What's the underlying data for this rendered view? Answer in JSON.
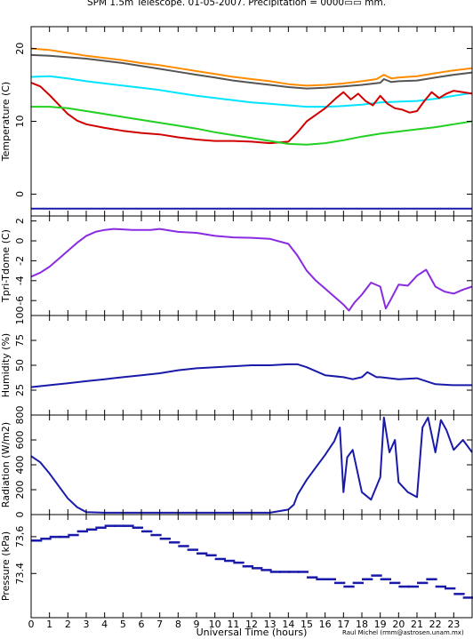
{
  "title": "SPM 1.5m Telescope. 01-05-2007. Precipitation = 0000▭▭ mm.",
  "xlabel": "Universal Time (hours)",
  "credit": "Raul Michel (rmm@astrosen.unam.mx)",
  "xticks": [
    "0",
    "1",
    "2",
    "3",
    "4",
    "5",
    "6",
    "7",
    "8",
    "9",
    "10",
    "11",
    "12",
    "13",
    "14",
    "15",
    "16",
    "17",
    "18",
    "19",
    "20",
    "21",
    "22",
    "23"
  ],
  "chart_data": [
    {
      "type": "line",
      "ylabel": "Temperature (C)",
      "ylim": [
        -3,
        23
      ],
      "yticks": [
        0,
        10,
        20
      ],
      "xlim": [
        0,
        24
      ],
      "series": [
        {
          "color": "#ff8c00",
          "x": [
            0,
            1,
            2,
            3,
            4,
            5,
            6,
            7,
            8,
            9,
            10,
            11,
            12,
            13,
            14,
            15,
            16,
            17,
            18,
            18.8,
            19.2,
            19.6,
            20,
            21,
            22,
            23,
            24
          ],
          "y": [
            20,
            19.8,
            19.4,
            19.0,
            18.7,
            18.4,
            18.0,
            17.7,
            17.3,
            16.9,
            16.5,
            16.1,
            15.8,
            15.5,
            15.1,
            14.9,
            15.0,
            15.2,
            15.5,
            15.8,
            16.4,
            15.9,
            16.0,
            16.2,
            16.6,
            17.0,
            17.3
          ]
        },
        {
          "color": "#555555",
          "x": [
            0,
            1,
            2,
            3,
            4,
            5,
            6,
            7,
            8,
            9,
            10,
            11,
            12,
            13,
            14,
            15,
            16,
            17,
            18,
            19,
            19.2,
            19.6,
            20,
            21,
            22,
            23,
            24
          ],
          "y": [
            19.1,
            19.0,
            18.8,
            18.6,
            18.3,
            18.0,
            17.6,
            17.2,
            16.8,
            16.4,
            16.0,
            15.6,
            15.3,
            15.0,
            14.7,
            14.5,
            14.6,
            14.8,
            15.0,
            15.3,
            15.8,
            15.4,
            15.5,
            15.6,
            16.0,
            16.4,
            16.7
          ]
        },
        {
          "color": "#00e5ff",
          "x": [
            0,
            1,
            2,
            3,
            4,
            5,
            6,
            7,
            8,
            9,
            10,
            11,
            12,
            13,
            14,
            15,
            16,
            17,
            18,
            19,
            20,
            21,
            22,
            23,
            24
          ],
          "y": [
            16.1,
            16.2,
            15.9,
            15.5,
            15.2,
            14.9,
            14.6,
            14.3,
            13.9,
            13.5,
            13.2,
            12.9,
            12.6,
            12.4,
            12.2,
            12.0,
            12.0,
            12.1,
            12.3,
            12.6,
            12.7,
            12.8,
            13.1,
            13.5,
            13.9
          ]
        },
        {
          "color": "#d00000",
          "x": [
            0,
            0.5,
            1,
            1.5,
            2,
            2.5,
            3,
            4,
            5,
            6,
            7,
            8,
            9,
            10,
            11,
            12,
            13,
            14,
            14.5,
            15,
            16,
            16.6,
            17,
            17.4,
            17.8,
            18.2,
            18.6,
            19,
            19.4,
            19.8,
            20.2,
            20.6,
            21,
            21.4,
            21.8,
            22.2,
            22.6,
            23,
            23.5,
            24
          ],
          "y": [
            15.3,
            14.8,
            13.6,
            12.3,
            11.0,
            10.1,
            9.6,
            9.1,
            8.7,
            8.4,
            8.2,
            7.8,
            7.5,
            7.3,
            7.3,
            7.2,
            7.0,
            7.2,
            8.5,
            10.0,
            11.8,
            13.2,
            14.0,
            13.0,
            13.8,
            12.8,
            12.2,
            13.5,
            12.4,
            11.8,
            11.6,
            11.2,
            11.4,
            12.8,
            14.0,
            13.2,
            13.8,
            14.2,
            14.0,
            13.8
          ]
        },
        {
          "color": "#22d022",
          "x": [
            0,
            1,
            2,
            3,
            4,
            5,
            6,
            7,
            8,
            9,
            10,
            11,
            12,
            13,
            14,
            15,
            16,
            17,
            18,
            19,
            20,
            21,
            22,
            23,
            24
          ],
          "y": [
            12.0,
            12.0,
            11.8,
            11.4,
            11.0,
            10.6,
            10.2,
            9.8,
            9.4,
            9.0,
            8.5,
            8.1,
            7.7,
            7.3,
            6.9,
            6.8,
            7.0,
            7.4,
            7.9,
            8.3,
            8.6,
            8.9,
            9.2,
            9.6,
            10.0
          ]
        },
        {
          "color": "#1a1aaa",
          "x": [
            0,
            24
          ],
          "y": [
            -2,
            -2
          ]
        }
      ]
    },
    {
      "type": "line",
      "ylabel": "Tpri-Tdome (C)",
      "ylim": [
        -7.5,
        2.5
      ],
      "yticks": [
        2,
        0,
        -2,
        -4,
        -6
      ],
      "xlim": [
        0,
        24
      ],
      "series": [
        {
          "color": "#8a2be2",
          "x": [
            0,
            0.5,
            1,
            1.5,
            2,
            2.5,
            3,
            3.5,
            4,
            4.5,
            5,
            5.5,
            6,
            6.5,
            7,
            7.5,
            8,
            9,
            10,
            11,
            12,
            13,
            14,
            14.5,
            15,
            15.5,
            16,
            16.5,
            17,
            17.3,
            17.6,
            18,
            18.5,
            19,
            19.3,
            19.6,
            20,
            20.5,
            21,
            21.5,
            22,
            22.5,
            23,
            23.5,
            24
          ],
          "y": [
            -3.6,
            -3.2,
            -2.6,
            -1.8,
            -1.0,
            -0.2,
            0.5,
            0.9,
            1.1,
            1.2,
            1.15,
            1.1,
            1.1,
            1.1,
            1.2,
            1.05,
            0.9,
            0.8,
            0.5,
            0.35,
            0.3,
            0.2,
            -0.3,
            -1.5,
            -3.0,
            -4.0,
            -4.8,
            -5.6,
            -6.4,
            -7.0,
            -6.2,
            -5.4,
            -4.2,
            -4.6,
            -6.8,
            -5.8,
            -4.4,
            -4.5,
            -3.5,
            -2.9,
            -4.6,
            -5.1,
            -5.3,
            -4.9,
            -4.6
          ]
        }
      ]
    },
    {
      "type": "line",
      "ylabel": "Humidity (%)",
      "ylim": [
        0,
        100
      ],
      "yticks": [
        25,
        50,
        75,
        100
      ],
      "xlim": [
        0,
        24
      ],
      "series": [
        {
          "color": "#1a1aaa",
          "x": [
            0,
            1,
            2,
            3,
            4,
            5,
            6,
            7,
            8,
            9,
            10,
            11,
            12,
            13,
            14,
            14.5,
            15,
            15.5,
            16,
            17,
            17.5,
            18,
            18.3,
            18.8,
            19,
            20,
            21,
            22,
            23,
            24
          ],
          "y": [
            28,
            30,
            32,
            34,
            36,
            38,
            40,
            42,
            45,
            47,
            48,
            49,
            50,
            50,
            51,
            51,
            48,
            44,
            40,
            38,
            36,
            38,
            43,
            38,
            38,
            36,
            37,
            31,
            30,
            30
          ]
        }
      ]
    },
    {
      "type": "line",
      "ylabel": "Radiation (W/m2)",
      "ylim": [
        0,
        800
      ],
      "yticks": [
        0,
        200,
        400,
        600,
        800
      ],
      "xlim": [
        0,
        24
      ],
      "series": [
        {
          "color": "#1a1aaa",
          "x": [
            0,
            0.5,
            1,
            1.5,
            2,
            2.5,
            3,
            4,
            5,
            6,
            7,
            8,
            9,
            10,
            11,
            12,
            13,
            14,
            14.3,
            14.5,
            15,
            15.5,
            16,
            16.5,
            16.8,
            17,
            17.2,
            17.5,
            18,
            18.5,
            19,
            19.2,
            19.5,
            19.8,
            20,
            20.5,
            21,
            21.3,
            21.6,
            22,
            22.3,
            22.6,
            23,
            23.5,
            24
          ],
          "y": [
            470,
            420,
            330,
            230,
            130,
            60,
            20,
            15,
            15,
            15,
            15,
            15,
            15,
            15,
            15,
            15,
            15,
            40,
            80,
            160,
            280,
            380,
            480,
            590,
            700,
            180,
            460,
            520,
            180,
            120,
            300,
            780,
            500,
            600,
            260,
            180,
            140,
            700,
            780,
            500,
            760,
            680,
            520,
            600,
            500
          ]
        }
      ]
    },
    {
      "type": "scatter",
      "ylabel": "Pressure (kPa)",
      "ylim": [
        73.16,
        73.72
      ],
      "yticks": [
        73.4,
        73.6
      ],
      "ytick_labels": [
        "73.4",
        "73,6"
      ],
      "xlim": [
        0,
        24
      ],
      "series": [
        {
          "color": "#1a1aaa",
          "x": [
            0,
            0.5,
            1,
            1.5,
            2,
            2.5,
            3,
            3.5,
            4,
            4.5,
            5,
            5.5,
            6,
            6.5,
            7,
            7.5,
            8,
            8.5,
            9,
            9.5,
            10,
            10.5,
            11,
            11.5,
            12,
            12.5,
            13,
            13.5,
            14,
            14.5,
            15,
            15.5,
            16,
            16.5,
            17,
            17.5,
            18,
            18.5,
            19,
            19.5,
            20,
            20.5,
            21,
            21.5,
            22,
            22.5,
            23,
            23.5,
            24
          ],
          "y": [
            73.58,
            73.59,
            73.6,
            73.6,
            73.61,
            73.63,
            73.64,
            73.65,
            73.66,
            73.66,
            73.66,
            73.65,
            73.63,
            73.61,
            73.59,
            73.57,
            73.55,
            73.53,
            73.51,
            73.5,
            73.48,
            73.47,
            73.46,
            73.44,
            73.43,
            73.42,
            73.41,
            73.41,
            73.41,
            73.41,
            73.38,
            73.37,
            73.37,
            73.35,
            73.33,
            73.35,
            73.37,
            73.39,
            73.37,
            73.35,
            73.33,
            73.33,
            73.35,
            73.37,
            73.33,
            73.32,
            73.29,
            73.27,
            73.25
          ]
        }
      ]
    }
  ]
}
